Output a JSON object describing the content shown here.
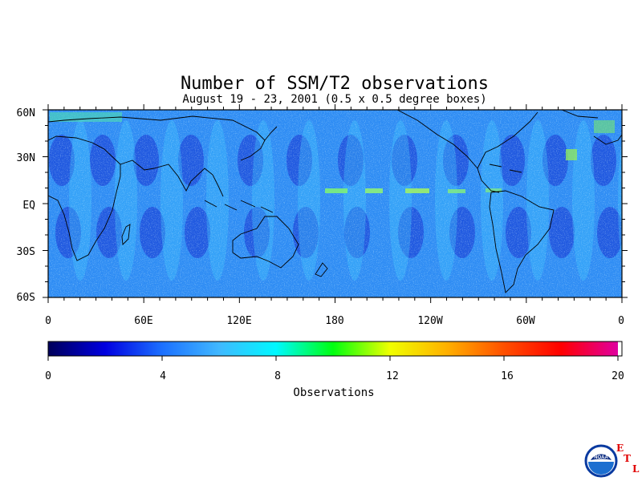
{
  "title": "Number of SSM/T2 observations",
  "subtitle": "August 19 - 23, 2001 (0.5 x 0.5 degree boxes)",
  "map": {
    "lat_labels": [
      "60N",
      "30N",
      "EQ",
      "30S",
      "60S"
    ],
    "lon_labels": [
      "0",
      "60E",
      "120E",
      "180",
      "120W",
      "60W",
      "0"
    ]
  },
  "colorbar": {
    "title": "Observations",
    "tick_labels": [
      "0",
      "4",
      "8",
      "12",
      "16",
      "20"
    ],
    "range": [
      0,
      20
    ],
    "colors": [
      "#00006e",
      "#0000d8",
      "#1060ff",
      "#30a8ff",
      "#00e8ff",
      "#00ff00",
      "#ffff00",
      "#ffa000",
      "#ff3000",
      "#ff0000",
      "#e800a0"
    ]
  },
  "logo": {
    "noaa_text": "NOAA",
    "etl_letters": [
      "E",
      "T",
      "L"
    ]
  }
}
